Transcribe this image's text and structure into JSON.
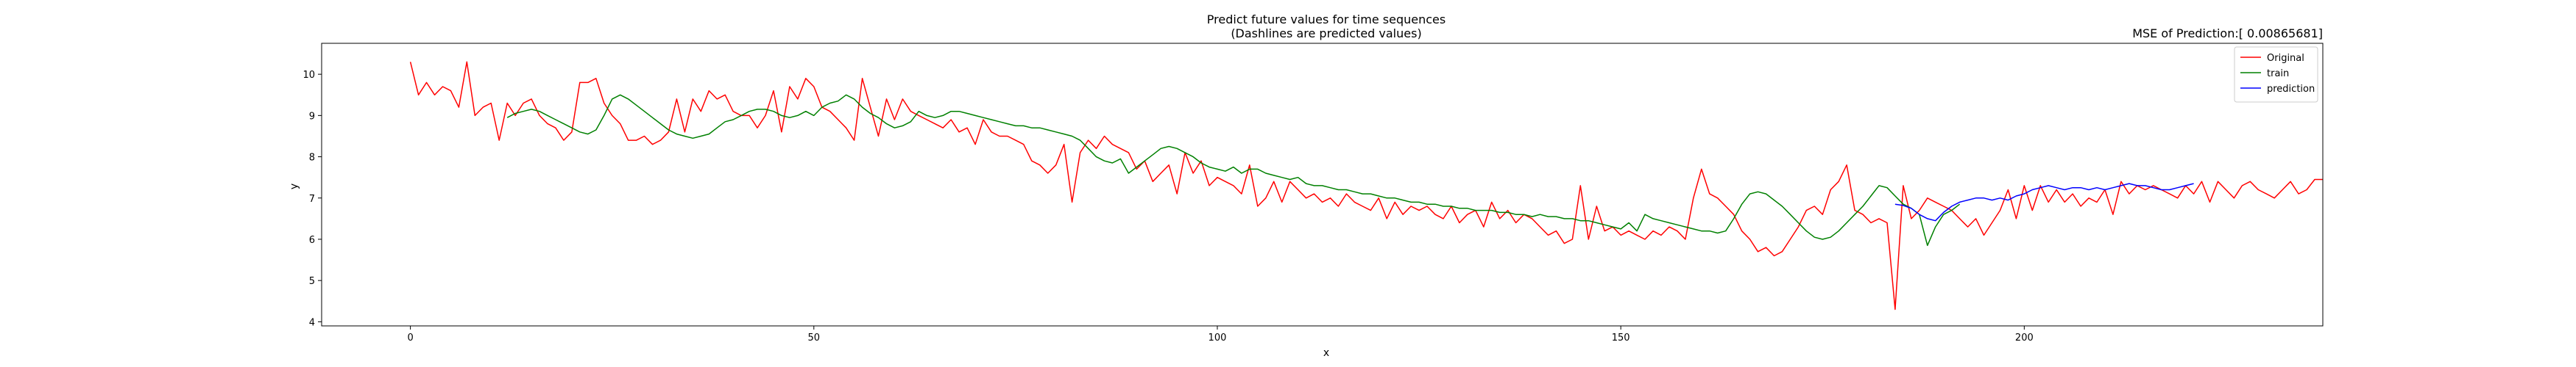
{
  "chart_data": {
    "type": "line",
    "title": "Predict future values for time sequences",
    "subtitle": "(Dashlines are predicted values)",
    "mse_label": "MSE of Prediction:[ 0.00865681]",
    "xlabel": "x",
    "ylabel": "y",
    "xlim": [
      -11,
      237
    ],
    "ylim": [
      3.9,
      10.75
    ],
    "xticks": [
      0,
      50,
      100,
      150,
      200
    ],
    "yticks": [
      4,
      5,
      6,
      7,
      8,
      9,
      10
    ],
    "grid": false,
    "legend_position": "top-right",
    "colors": {
      "Original": "#ff0000",
      "train": "#008000",
      "prediction": "#0000ff"
    },
    "series": [
      {
        "name": "Original",
        "x_start": 0,
        "values": [
          10.3,
          9.5,
          9.8,
          9.5,
          9.7,
          9.6,
          9.2,
          10.3,
          9.0,
          9.2,
          9.3,
          8.4,
          9.3,
          9.0,
          9.3,
          9.4,
          9.0,
          8.8,
          8.7,
          8.4,
          8.6,
          9.8,
          9.8,
          9.9,
          9.3,
          9.0,
          8.8,
          8.4,
          8.4,
          8.5,
          8.3,
          8.4,
          8.6,
          9.4,
          8.6,
          9.4,
          9.1,
          9.6,
          9.4,
          9.5,
          9.1,
          9.0,
          9.0,
          8.7,
          9.0,
          9.6,
          8.6,
          9.7,
          9.4,
          9.9,
          9.7,
          9.2,
          9.1,
          8.9,
          8.7,
          8.4,
          9.9,
          9.2,
          8.5,
          9.4,
          8.9,
          9.4,
          9.1,
          9.0,
          8.9,
          8.8,
          8.7,
          8.9,
          8.6,
          8.7,
          8.3,
          8.9,
          8.6,
          8.5,
          8.5,
          8.4,
          8.3,
          7.9,
          7.8,
          7.6,
          7.8,
          8.3,
          6.9,
          8.1,
          8.4,
          8.2,
          8.5,
          8.3,
          8.2,
          8.1,
          7.7,
          7.9,
          7.4,
          7.6,
          7.8,
          7.1,
          8.1,
          7.6,
          7.9,
          7.3,
          7.5,
          7.4,
          7.3,
          7.1,
          7.8,
          6.8,
          7.0,
          7.4,
          6.9,
          7.4,
          7.2,
          7.0,
          7.1,
          6.9,
          7.0,
          6.8,
          7.1,
          6.9,
          6.8,
          6.7,
          7.0,
          6.5,
          6.9,
          6.6,
          6.8,
          6.7,
          6.8,
          6.6,
          6.5,
          6.8,
          6.4,
          6.6,
          6.7,
          6.3,
          6.9,
          6.5,
          6.7,
          6.4,
          6.6,
          6.5,
          6.3,
          6.1,
          6.2,
          5.9,
          6.0,
          7.3,
          6.0,
          6.8,
          6.2,
          6.3,
          6.1,
          6.2,
          6.1,
          6.0,
          6.2,
          6.1,
          6.3,
          6.2,
          6.0,
          7.0,
          7.7,
          7.1,
          7.0,
          6.8,
          6.6,
          6.2,
          6.0,
          5.7,
          5.8,
          5.6,
          5.7,
          6.0,
          6.3,
          6.7,
          6.8,
          6.6,
          7.2,
          7.4,
          7.8,
          6.7,
          6.6,
          6.4,
          6.5,
          6.4,
          4.3,
          7.3,
          6.5,
          6.7,
          7.0,
          6.9,
          6.8,
          6.7,
          6.5,
          6.3,
          6.5,
          6.1,
          6.4,
          6.7,
          7.2,
          6.5,
          7.3,
          6.7,
          7.3,
          6.9,
          7.2,
          6.9,
          7.1,
          6.8,
          7.0,
          6.9,
          7.2,
          6.6,
          7.4,
          7.1,
          7.3,
          7.2,
          7.3,
          7.2,
          7.1,
          7.0,
          7.3,
          7.1,
          7.4,
          6.9,
          7.4,
          7.2,
          7.0,
          7.3,
          7.4,
          7.2,
          7.1,
          7.0,
          7.2,
          7.4,
          7.1,
          7.2,
          7.45,
          7.45
        ]
      },
      {
        "name": "train",
        "x_start": 12,
        "values": [
          8.95,
          9.05,
          9.1,
          9.15,
          9.1,
          9.0,
          8.9,
          8.8,
          8.7,
          8.6,
          8.55,
          8.65,
          9.0,
          9.4,
          9.5,
          9.4,
          9.25,
          9.1,
          8.95,
          8.8,
          8.65,
          8.55,
          8.5,
          8.45,
          8.5,
          8.55,
          8.7,
          8.85,
          8.9,
          9.0,
          9.1,
          9.15,
          9.15,
          9.1,
          9.0,
          8.95,
          9.0,
          9.1,
          9.0,
          9.2,
          9.3,
          9.35,
          9.5,
          9.4,
          9.2,
          9.05,
          8.95,
          8.8,
          8.7,
          8.75,
          8.85,
          9.1,
          9.0,
          8.95,
          9.0,
          9.1,
          9.1,
          9.05,
          9.0,
          8.95,
          8.9,
          8.85,
          8.8,
          8.75,
          8.75,
          8.7,
          8.7,
          8.65,
          8.6,
          8.55,
          8.5,
          8.4,
          8.2,
          8.0,
          7.9,
          7.85,
          7.95,
          7.6,
          7.75,
          7.9,
          8.05,
          8.2,
          8.25,
          8.2,
          8.1,
          8.0,
          7.85,
          7.75,
          7.7,
          7.65,
          7.75,
          7.6,
          7.7,
          7.7,
          7.6,
          7.55,
          7.5,
          7.45,
          7.5,
          7.35,
          7.3,
          7.3,
          7.25,
          7.2,
          7.2,
          7.15,
          7.1,
          7.1,
          7.05,
          7.0,
          7.0,
          6.95,
          6.9,
          6.9,
          6.85,
          6.85,
          6.8,
          6.8,
          6.75,
          6.75,
          6.7,
          6.7,
          6.7,
          6.65,
          6.65,
          6.6,
          6.6,
          6.55,
          6.6,
          6.55,
          6.55,
          6.5,
          6.5,
          6.45,
          6.45,
          6.4,
          6.35,
          6.3,
          6.25,
          6.4,
          6.2,
          6.6,
          6.5,
          6.45,
          6.4,
          6.35,
          6.3,
          6.25,
          6.2,
          6.2,
          6.15,
          6.2,
          6.5,
          6.85,
          7.1,
          7.15,
          7.1,
          6.95,
          6.8,
          6.6,
          6.4,
          6.2,
          6.05,
          6.0,
          6.05,
          6.2,
          6.4,
          6.6,
          6.8,
          7.05,
          7.3,
          7.25,
          7.05,
          6.85,
          6.75,
          6.6,
          5.85,
          6.3,
          6.6,
          6.7,
          6.85
        ]
      },
      {
        "name": "prediction",
        "x_start": 184,
        "values": [
          6.85,
          6.82,
          6.75,
          6.6,
          6.5,
          6.45,
          6.65,
          6.8,
          6.9,
          6.95,
          7.0,
          7.0,
          6.95,
          7.0,
          6.95,
          7.05,
          7.1,
          7.2,
          7.25,
          7.3,
          7.25,
          7.2,
          7.25,
          7.25,
          7.2,
          7.25,
          7.2,
          7.25,
          7.3,
          7.35,
          7.3,
          7.3,
          7.25,
          7.2,
          7.2,
          7.25,
          7.3,
          7.35
        ]
      }
    ]
  }
}
